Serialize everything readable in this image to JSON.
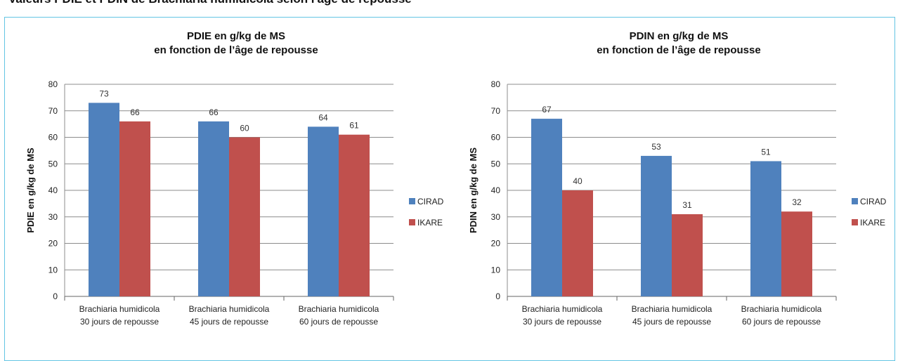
{
  "header": {
    "text": "Valeurs PDIE et PDIN de Brachiaria humidicola selon l'âge de repousse"
  },
  "colors": {
    "cirad": "#4f81bd",
    "ikare": "#c0504d",
    "grid": "#8c8c8c",
    "border": "#63c5e3"
  },
  "chart_data": [
    {
      "type": "bar",
      "title": [
        "PDIE en g/kg de MS",
        "en fonction de l’âge de repousse"
      ],
      "ylabel": "PDIE en g/kg de MS",
      "xlabel": "",
      "ylim": [
        0,
        80
      ],
      "yticks": [
        "0",
        "10",
        "20",
        "30",
        "40",
        "50",
        "60",
        "70",
        "80"
      ],
      "categories": [
        [
          "Brachiaria humidicola",
          "30 jours de repousse"
        ],
        [
          "Brachiaria humidicola",
          "45 jours de repousse"
        ],
        [
          "Brachiaria humidicola",
          "60 jours de repousse"
        ]
      ],
      "series": [
        {
          "name": "CIRAD",
          "values": [
            73,
            66,
            64
          ],
          "labels": [
            "73",
            "66",
            "64"
          ]
        },
        {
          "name": "IKARE",
          "values": [
            66,
            60,
            61
          ],
          "labels": [
            "66",
            "60",
            "61"
          ]
        }
      ],
      "legend": "right",
      "grid": true
    },
    {
      "type": "bar",
      "title": [
        "PDIN en g/kg de MS",
        "en fonction de l’âge de repousse"
      ],
      "ylabel": "PDIN en g/kg de MS",
      "xlabel": "",
      "ylim": [
        0,
        80
      ],
      "yticks": [
        "0",
        "10",
        "20",
        "30",
        "40",
        "50",
        "60",
        "70",
        "80"
      ],
      "categories": [
        [
          "Brachiaria humidicola",
          "30 jours de repousse"
        ],
        [
          "Brachiaria humidicola",
          "45 jours de repousse"
        ],
        [
          "Brachiaria humidicola",
          "60 jours de repousse"
        ]
      ],
      "series": [
        {
          "name": "CIRAD",
          "values": [
            67,
            53,
            51
          ],
          "labels": [
            "67",
            "53",
            "51"
          ]
        },
        {
          "name": "IKARE",
          "values": [
            40,
            31,
            32
          ],
          "labels": [
            "40",
            "31",
            "32"
          ]
        }
      ],
      "legend": "right",
      "grid": true
    }
  ]
}
